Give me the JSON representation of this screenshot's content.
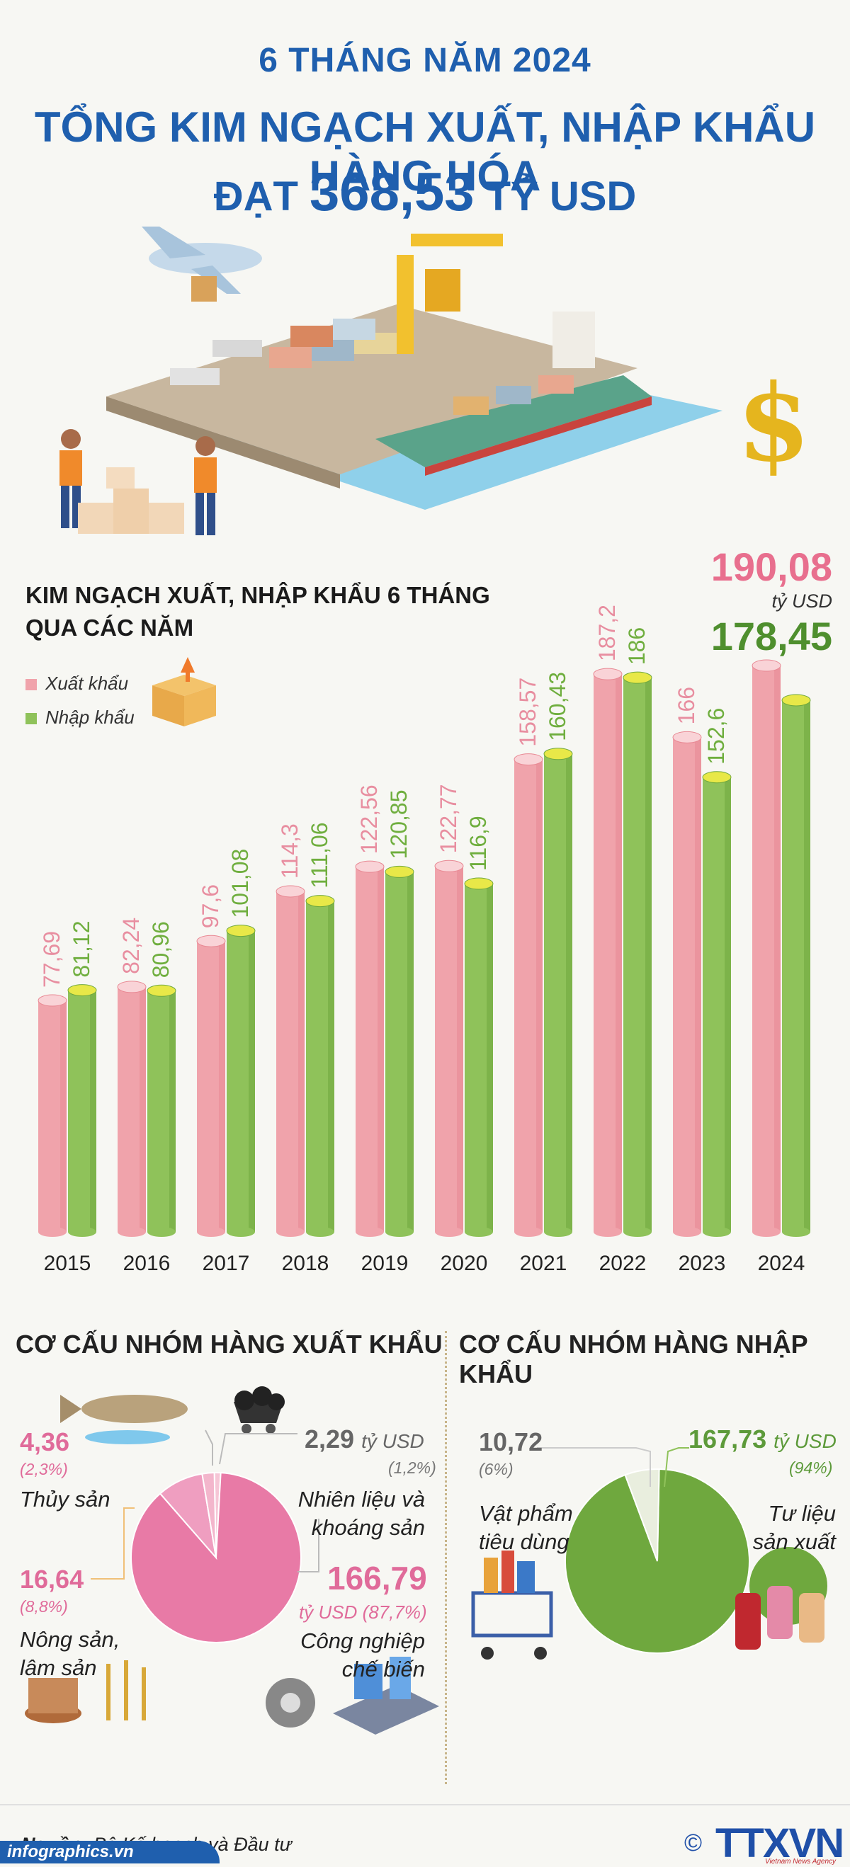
{
  "header": {
    "line1": "6 THÁNG NĂM 2024",
    "line2": "TỔNG KIM NGẠCH XUẤT, NHẬP KHẨU HÀNG HÓA",
    "line3_prefix": "ĐẠT ",
    "line3_value": "368,53",
    "line3_suffix": " TỶ USD",
    "color": "#1f5fae"
  },
  "chart_data": {
    "type": "bar",
    "title": "KIM NGẠCH XUẤT, NHẬP KHẨU 6 THÁNG QUA CÁC NĂM",
    "categories": [
      "2015",
      "2016",
      "2017",
      "2018",
      "2019",
      "2020",
      "2021",
      "2022",
      "2023",
      "2024"
    ],
    "series": [
      {
        "name": "Xuất khẩu",
        "color": "#f0a3ab",
        "values": [
          77.69,
          82.24,
          97.6,
          114.3,
          122.56,
          122.77,
          158.57,
          187.2,
          166,
          190.08
        ],
        "labels": [
          "77,69",
          "82,24",
          "97,6",
          "114,3",
          "122,56",
          "122,77",
          "158,57",
          "187,2",
          "166",
          "190,08"
        ]
      },
      {
        "name": "Nhập khẩu",
        "color": "#8fc25a",
        "values": [
          81.12,
          80.96,
          101.08,
          111.06,
          120.85,
          116.9,
          160.43,
          186,
          152.6,
          178.45
        ],
        "labels": [
          "81,12",
          "80,96",
          "101,08",
          "111,06",
          "120,85",
          "116,9",
          "160,43",
          "186",
          "152,6",
          "178,45"
        ]
      }
    ],
    "highlight_unit": "tỷ USD",
    "ylim": [
      0,
      200
    ],
    "grid": false,
    "legend": "top-left"
  },
  "export_structure": {
    "title": "CƠ CẤU NHÓM HÀNG XUẤT KHẨU",
    "color": "#e06b9a",
    "items": [
      {
        "value": "4,36",
        "pct": "(2,3%)",
        "label": "Thủy sản",
        "share": 2.3
      },
      {
        "value": "2,29",
        "unit": "tỷ USD",
        "pct": "(1,2%)",
        "label_lines": [
          "Nhiên liệu và",
          "khoáng sản"
        ],
        "share": 1.2
      },
      {
        "value": "16,64",
        "pct": "(8,8%)",
        "label_lines": [
          "Nông sản,",
          "lâm sản"
        ],
        "share": 8.8
      },
      {
        "value": "166,79",
        "unit": "tỷ USD",
        "pct": "(87,7%)",
        "label_lines": [
          "Công nghiệp",
          "chế biến"
        ],
        "share": 87.7
      }
    ]
  },
  "import_structure": {
    "title": "CƠ CẤU NHÓM HÀNG NHẬP KHẨU",
    "color": "#5d9a3a",
    "items": [
      {
        "value": "10,72",
        "pct": "(6%)",
        "label_lines": [
          "Vật phẩm",
          "tiêu dùng"
        ],
        "share": 6
      },
      {
        "value": "167,73",
        "unit": "tỷ USD",
        "pct": "(94%)",
        "label_lines": [
          "Tư liệu",
          "sản xuất"
        ],
        "share": 94
      }
    ]
  },
  "footer": {
    "source_label": "Nguồn:",
    "source_text": " Bộ Kế hoạch và Đầu tư",
    "site": "infographics.vn",
    "logo": "TTXVN",
    "copyright": "©",
    "agency": "Vietnam News Agency"
  }
}
